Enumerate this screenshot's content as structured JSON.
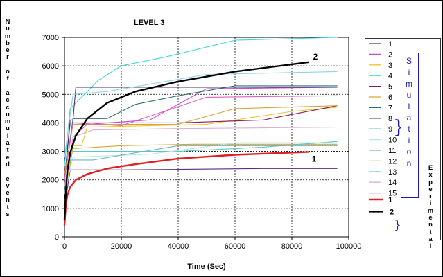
{
  "chart_data": {
    "type": "line",
    "title": "LEVEL 3",
    "xlabel": "Time (Sec)",
    "ylabel": "Number of accumulated events",
    "xlim": [
      0,
      100000
    ],
    "ylim": [
      0,
      7000
    ],
    "xticks": [
      "0",
      "20000",
      "40000",
      "60000",
      "80000",
      "100000"
    ],
    "yticks": [
      "0",
      "1000",
      "2000",
      "3000",
      "4000",
      "5000",
      "6000",
      "7000"
    ],
    "grid": true,
    "legend_position": "right",
    "side_labels": {
      "simulation": "Simulation",
      "experimental": "Experimental"
    },
    "series": [
      {
        "name": "1",
        "group": "Simulation",
        "color": "#5a2d82",
        "points": [
          [
            0,
            1000
          ],
          [
            2000,
            2350
          ],
          [
            20000,
            2350
          ],
          [
            70000,
            2400
          ],
          [
            96000,
            2400
          ]
        ]
      },
      {
        "name": "2",
        "group": "Simulation",
        "color": "#c54bd0",
        "points": [
          [
            0,
            1500
          ],
          [
            3000,
            3500
          ],
          [
            8000,
            3950
          ],
          [
            30000,
            4100
          ],
          [
            50000,
            5200
          ],
          [
            96000,
            5250
          ]
        ]
      },
      {
        "name": "3",
        "group": "Simulation",
        "color": "#e6c82e",
        "points": [
          [
            0,
            1200
          ],
          [
            3000,
            3200
          ],
          [
            6000,
            3200
          ],
          [
            8000,
            3850
          ],
          [
            50000,
            3950
          ],
          [
            80000,
            4400
          ],
          [
            96000,
            4550
          ]
        ]
      },
      {
        "name": "4",
        "group": "Simulation",
        "color": "#3fd6d6",
        "points": [
          [
            0,
            2500
          ],
          [
            2000,
            4500
          ],
          [
            7000,
            5000
          ],
          [
            12000,
            5500
          ],
          [
            20000,
            6000
          ],
          [
            35000,
            6300
          ],
          [
            60000,
            6900
          ],
          [
            96000,
            7000
          ]
        ]
      },
      {
        "name": "5",
        "group": "Simulation",
        "color": "#8b1a5e",
        "points": [
          [
            0,
            2000
          ],
          [
            2000,
            4000
          ],
          [
            4000,
            4000
          ],
          [
            40000,
            4000
          ],
          [
            70000,
            4100
          ],
          [
            96000,
            4600
          ]
        ]
      },
      {
        "name": "6",
        "group": "Simulation",
        "color": "#d9a630",
        "points": [
          [
            0,
            1500
          ],
          [
            3000,
            3100
          ],
          [
            20000,
            3200
          ],
          [
            45000,
            3250
          ],
          [
            96000,
            3250
          ]
        ]
      },
      {
        "name": "7",
        "group": "Simulation",
        "color": "#2e7070",
        "points": [
          [
            0,
            2000
          ],
          [
            3000,
            4150
          ],
          [
            15000,
            4150
          ],
          [
            25000,
            4650
          ],
          [
            40000,
            4950
          ],
          [
            60000,
            5300
          ],
          [
            96000,
            5300
          ]
        ]
      },
      {
        "name": "8",
        "group": "Simulation",
        "color": "#4a2f7a",
        "points": [
          [
            0,
            2000
          ],
          [
            2000,
            4100
          ],
          [
            3000,
            4100
          ],
          [
            4000,
            5250
          ],
          [
            96000,
            5250
          ]
        ]
      },
      {
        "name": "9",
        "group": "Simulation",
        "color": "#5cc7c7",
        "points": [
          [
            0,
            1500
          ],
          [
            2000,
            3000
          ],
          [
            40000,
            3000
          ],
          [
            70000,
            3150
          ],
          [
            96000,
            3350
          ]
        ]
      },
      {
        "name": "10",
        "group": "Simulation",
        "color": "#b5e8e8",
        "points": [
          [
            0,
            1500
          ],
          [
            3000,
            2800
          ],
          [
            30000,
            2900
          ],
          [
            60000,
            3300
          ],
          [
            96000,
            3300
          ]
        ]
      },
      {
        "name": "11",
        "group": "Simulation",
        "color": "#7ab0c0",
        "points": [
          [
            0,
            1800
          ],
          [
            2000,
            2700
          ],
          [
            10000,
            2700
          ],
          [
            40000,
            3200
          ],
          [
            96000,
            3200
          ]
        ]
      },
      {
        "name": "12",
        "group": "Simulation",
        "color": "#d6a23a",
        "points": [
          [
            0,
            2200
          ],
          [
            3000,
            3950
          ],
          [
            40000,
            3950
          ],
          [
            60000,
            4500
          ],
          [
            96000,
            4600
          ]
        ]
      },
      {
        "name": "13",
        "group": "Simulation",
        "color": "#8fd3e8",
        "points": [
          [
            0,
            2800
          ],
          [
            3000,
            5000
          ],
          [
            15000,
            5100
          ],
          [
            50000,
            5700
          ],
          [
            96000,
            5800
          ]
        ]
      },
      {
        "name": "14",
        "group": "Simulation",
        "color": "#d9b0d6",
        "points": [
          [
            0,
            1800
          ],
          [
            3000,
            3500
          ],
          [
            10000,
            3750
          ],
          [
            40000,
            3800
          ],
          [
            96000,
            3850
          ]
        ]
      },
      {
        "name": "15",
        "group": "Simulation",
        "color": "#e060b8",
        "points": [
          [
            0,
            2000
          ],
          [
            3000,
            4000
          ],
          [
            20000,
            3900
          ],
          [
            50000,
            4900
          ],
          [
            96000,
            4950
          ]
        ]
      },
      {
        "name": "1",
        "group": "Experimental",
        "color": "#e02020",
        "label": "1",
        "points": [
          [
            0,
            400
          ],
          [
            500,
            1100
          ],
          [
            1000,
            1450
          ],
          [
            2000,
            1750
          ],
          [
            4000,
            2000
          ],
          [
            8000,
            2200
          ],
          [
            15000,
            2400
          ],
          [
            25000,
            2550
          ],
          [
            40000,
            2750
          ],
          [
            60000,
            2880
          ],
          [
            86000,
            2980
          ]
        ]
      },
      {
        "name": "2",
        "group": "Experimental",
        "color": "#000000",
        "label": "2",
        "points": [
          [
            0,
            600
          ],
          [
            500,
            1600
          ],
          [
            1000,
            2300
          ],
          [
            2000,
            2950
          ],
          [
            4000,
            3550
          ],
          [
            8000,
            4150
          ],
          [
            15000,
            4700
          ],
          [
            25000,
            5100
          ],
          [
            40000,
            5450
          ],
          [
            60000,
            5800
          ],
          [
            86000,
            6130
          ]
        ]
      }
    ]
  }
}
